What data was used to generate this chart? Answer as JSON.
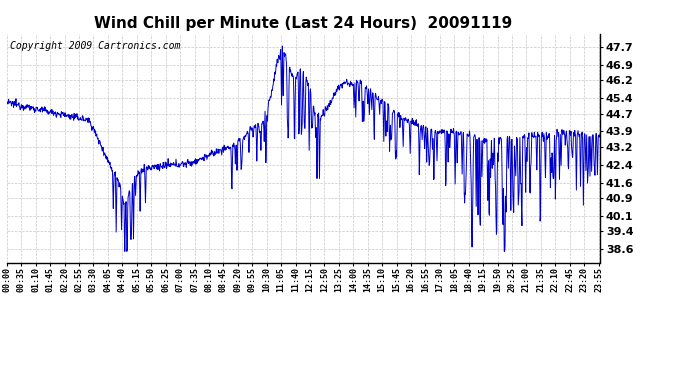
{
  "title": "Wind Chill per Minute (Last 24 Hours)  20091119",
  "copyright": "Copyright 2009 Cartronics.com",
  "yticks": [
    38.6,
    39.4,
    40.1,
    40.9,
    41.6,
    42.4,
    43.2,
    43.9,
    44.7,
    45.4,
    46.2,
    46.9,
    47.7
  ],
  "ylim": [
    38.0,
    48.3
  ],
  "line_color": "#0000cc",
  "bg_color": "#ffffff",
  "grid_color": "#c8c8c8",
  "title_fontsize": 11,
  "copyright_fontsize": 7
}
